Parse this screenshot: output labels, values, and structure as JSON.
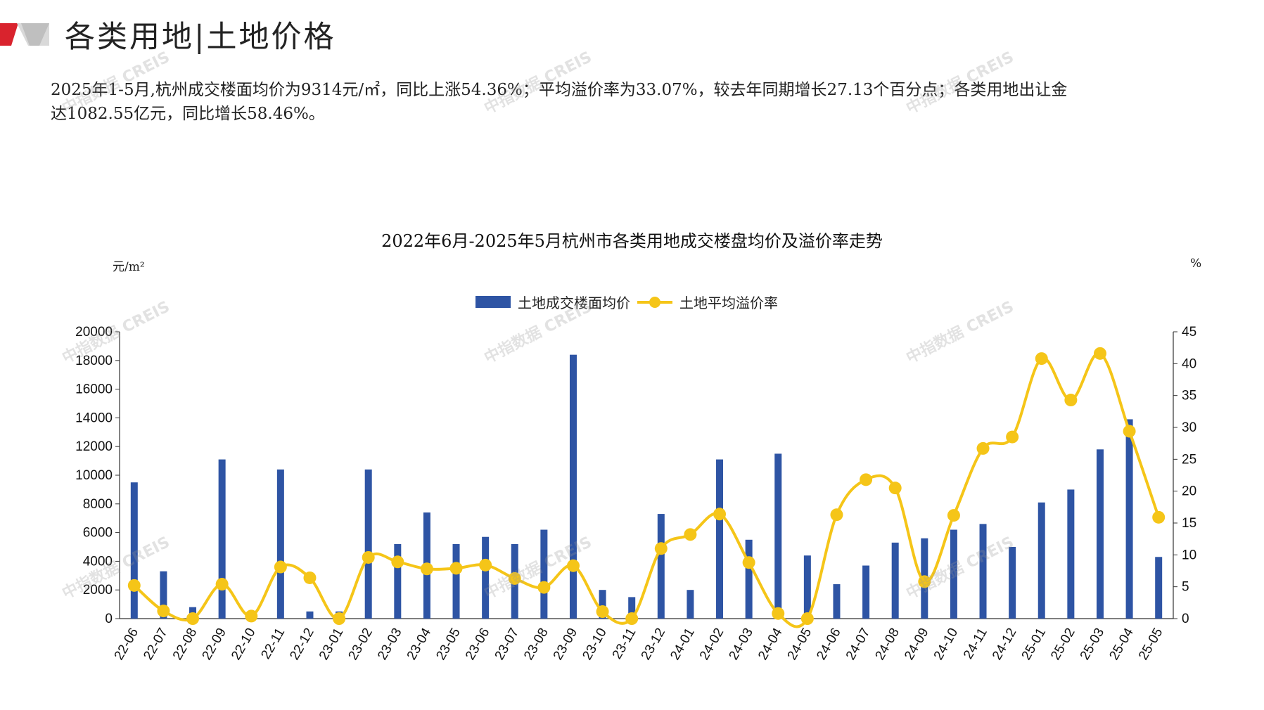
{
  "header": {
    "title": "各类用地|土地价格"
  },
  "summary": {
    "line1": "2025年1-5月,杭州成交楼面均价为9314元/㎡，同比上涨54.36%；平均溢价率为33.07%，较去年同期增长27.13个百分点；各类用地出让金",
    "line2": "达1082.55亿元，同比增长58.46%。"
  },
  "watermark": {
    "text": "中指数据 CREIS"
  },
  "colors": {
    "bar": "#2e54a4",
    "line": "#f5c518",
    "accent_red": "#d9232d"
  },
  "chart_data": {
    "type": "bar",
    "title": "2022年6月-2025年5月杭州市各类用地成交楼盘均价及溢价率走势",
    "y_left_unit": "元/m²",
    "y_right_unit": "%",
    "ylim_left": [
      0,
      20000
    ],
    "ylim_right": [
      0,
      45
    ],
    "y_left_ticks": [
      0,
      2000,
      4000,
      6000,
      8000,
      10000,
      12000,
      14000,
      16000,
      18000,
      20000
    ],
    "y_right_ticks": [
      0,
      5,
      10,
      15,
      20,
      25,
      30,
      35,
      40,
      45
    ],
    "grid": false,
    "legend_position": "top-center",
    "categories": [
      "22-06",
      "22-07",
      "22-08",
      "22-09",
      "22-10",
      "22-11",
      "22-12",
      "23-01",
      "23-02",
      "23-03",
      "23-04",
      "23-05",
      "23-06",
      "23-07",
      "23-08",
      "23-09",
      "23-10",
      "23-11",
      "23-12",
      "24-01",
      "24-02",
      "24-03",
      "24-04",
      "24-05",
      "24-06",
      "24-07",
      "24-08",
      "24-09",
      "24-10",
      "24-11",
      "24-12",
      "25-01",
      "25-02",
      "25-03",
      "25-04",
      "25-05"
    ],
    "series": [
      {
        "name": "土地成交楼面均价",
        "kind": "bar",
        "axis": "left",
        "values": [
          9500,
          3300,
          800,
          11100,
          0,
          10400,
          500,
          500,
          10400,
          5200,
          7400,
          5200,
          5700,
          5200,
          6200,
          18400,
          2000,
          1500,
          7300,
          2000,
          11100,
          5500,
          11500,
          4400,
          2400,
          3700,
          5300,
          5600,
          6200,
          6600,
          5000,
          8100,
          9000,
          11800,
          13900,
          4300
        ]
      },
      {
        "name": "土地平均溢价率",
        "kind": "line",
        "axis": "right",
        "values": [
          5.2,
          1.2,
          0.0,
          5.4,
          0.4,
          8.1,
          6.4,
          0.0,
          9.6,
          8.9,
          7.8,
          7.9,
          8.4,
          6.3,
          4.9,
          8.3,
          1.1,
          0.0,
          11.0,
          13.2,
          16.4,
          8.8,
          0.8,
          0.0,
          16.3,
          21.8,
          20.5,
          5.8,
          16.2,
          26.7,
          28.5,
          40.8,
          34.3,
          41.6,
          29.4,
          15.9
        ]
      }
    ]
  }
}
